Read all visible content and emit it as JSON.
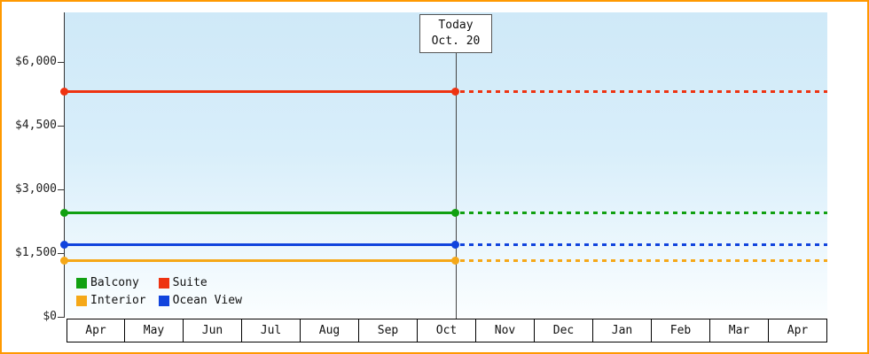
{
  "chart_data": {
    "type": "line",
    "title": "",
    "x_categories": [
      "Apr",
      "May",
      "Jun",
      "Jul",
      "Aug",
      "Sep",
      "Oct",
      "Nov",
      "Dec",
      "Jan",
      "Feb",
      "Mar",
      "Apr"
    ],
    "y_ticks": [
      {
        "label": "$0",
        "value": 0
      },
      {
        "label": "$1,500",
        "value": 1500
      },
      {
        "label": "$3,000",
        "value": 3000
      },
      {
        "label": "$4,500",
        "value": 4500
      },
      {
        "label": "$6,000",
        "value": 6000
      }
    ],
    "ylim": [
      0,
      7200
    ],
    "grid": false,
    "today": {
      "label": [
        "Today",
        "Oct. 20"
      ],
      "month_index": 6,
      "day": 20,
      "days_in_month": 31
    },
    "series": [
      {
        "name": "Suite",
        "color": "#ee3311",
        "value": 5300,
        "style": "solid-until-today-then-dashed"
      },
      {
        "name": "Balcony",
        "color": "#11a011",
        "value": 2450,
        "style": "solid-until-today-then-dashed"
      },
      {
        "name": "Ocean View",
        "color": "#1144dd",
        "value": 1700,
        "style": "solid-until-today-then-dashed"
      },
      {
        "name": "Interior",
        "color": "#f5a818",
        "value": 1330,
        "style": "solid-until-today-then-dashed"
      }
    ],
    "legend": {
      "position": "bottom-left",
      "items": [
        {
          "label": "Balcony",
          "color": "#11a011"
        },
        {
          "label": "Suite",
          "color": "#ee3311"
        },
        {
          "label": "Interior",
          "color": "#f5a818"
        },
        {
          "label": "Ocean View",
          "color": "#1144dd"
        }
      ]
    }
  },
  "colors": {
    "frame_border": "#ff9900",
    "axis": "#333333",
    "plot_background_top": "#cfe9f8",
    "plot_background_bottom": "#fbfeff"
  }
}
